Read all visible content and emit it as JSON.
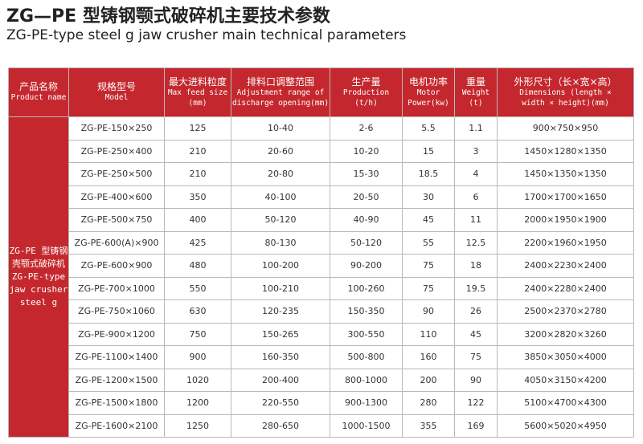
{
  "header": {
    "title": "ZG—PE 型铸钢颚式破碎机主要技术参数",
    "subtitle": "ZG-PE-type steel g jaw crusher main technical parameters"
  },
  "table": {
    "columns": [
      [
        "产品名称",
        "Product name"
      ],
      [
        "规格型号",
        "Model"
      ],
      [
        "最大进料粒度",
        "Max feed size",
        "(mm)"
      ],
      [
        "排料口调整范围",
        "Adjustment range of",
        "discharge opening(mm)"
      ],
      [
        "生产量",
        "Production",
        "(t/h)"
      ],
      [
        "电机功率",
        "Motor",
        "Power(kw)"
      ],
      [
        "重量",
        "Weight",
        "(t)"
      ],
      [
        "外形尺寸（长×宽×高）",
        "Dimensions (length ×",
        "width × height)(mm)"
      ]
    ],
    "product": [
      "ZG-PE 型铸钢",
      "壳颚式破碎机",
      "ZG-PE-type",
      "jaw crusher",
      "steel g"
    ],
    "rows": [
      [
        "ZG-PE-150×250",
        "125",
        "10-40",
        "2-6",
        "5.5",
        "1.1",
        "900×750×950"
      ],
      [
        "ZG-PE-250×400",
        "210",
        "20-60",
        "10-20",
        "15",
        "3",
        "1450×1280×1350"
      ],
      [
        "ZG-PE-250×500",
        "210",
        "20-80",
        "15-30",
        "18.5",
        "4",
        "1450×1350×1350"
      ],
      [
        "ZG-PE-400×600",
        "350",
        "40-100",
        "20-50",
        "30",
        "6",
        "1700×1700×1650"
      ],
      [
        "ZG-PE-500×750",
        "400",
        "50-120",
        "40-90",
        "45",
        "11",
        "2000×1950×1900"
      ],
      [
        "ZG-PE-600(A)×900",
        "425",
        "80-130",
        "50-120",
        "55",
        "12.5",
        "2200×1960×1950"
      ],
      [
        "ZG-PE-600×900",
        "480",
        "100-200",
        "90-200",
        "75",
        "18",
        "2400×2230×2400"
      ],
      [
        "ZG-PE-700×1000",
        "550",
        "100-210",
        "100-260",
        "75",
        "19.5",
        "2400×2280×2400"
      ],
      [
        "ZG-PE-750×1060",
        "630",
        "120-235",
        "150-350",
        "90",
        "26",
        "2500×2370×2780"
      ],
      [
        "ZG-PE-900×1200",
        "750",
        "150-265",
        "300-550",
        "110",
        "45",
        "3200×2820×3260"
      ],
      [
        "ZG-PE-1100×1400",
        "900",
        "160-350",
        "500-800",
        "160",
        "75",
        "3850×3050×4000"
      ],
      [
        "ZG-PE-1200×1500",
        "1020",
        "200-400",
        "800-1000",
        "200",
        "90",
        "4050×3150×4200"
      ],
      [
        "ZG-PE-1500×1800",
        "1200",
        "220-550",
        "900-1300",
        "280",
        "122",
        "5100×4700×4300"
      ],
      [
        "ZG-PE-1600×2100",
        "1250",
        "280-650",
        "1000-1500",
        "355",
        "169",
        "5600×5020×4950"
      ]
    ]
  }
}
